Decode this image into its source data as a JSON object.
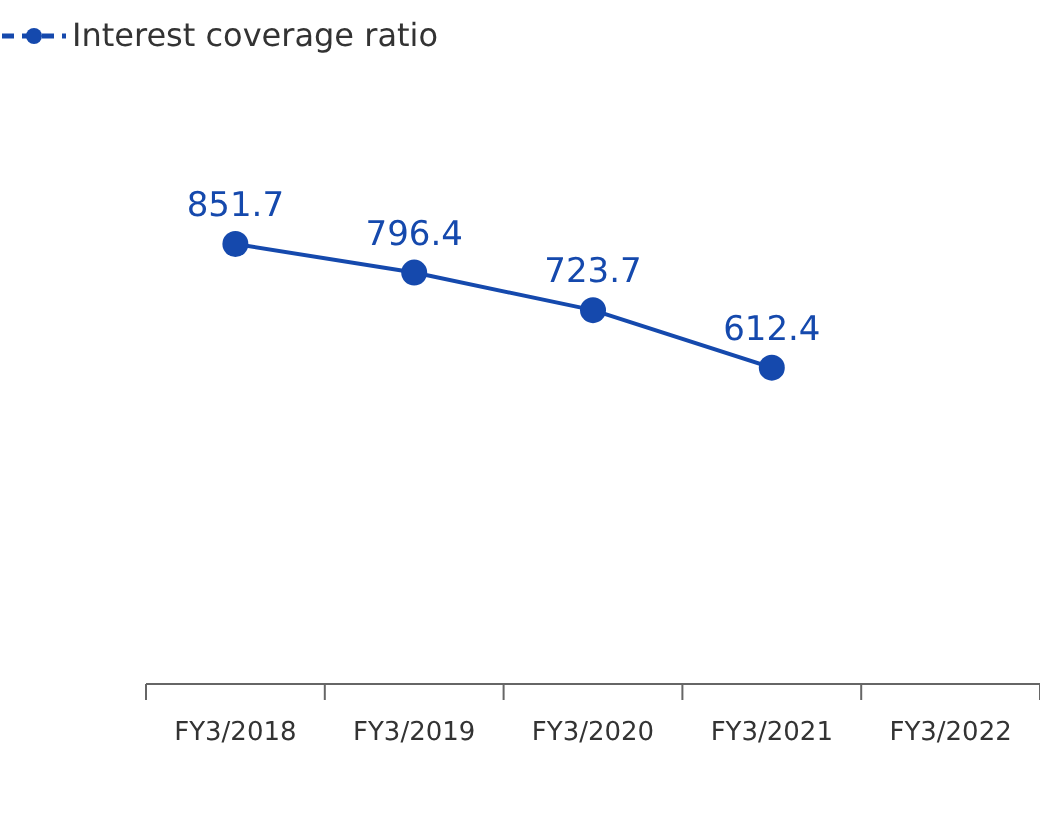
{
  "chart_data": {
    "type": "line",
    "categories": [
      "FY3/2018",
      "FY3/2019",
      "FY3/2020",
      "FY3/2021",
      "FY3/2022"
    ],
    "series": [
      {
        "name": "Interest coverage ratio",
        "color": "#1549ad",
        "values": [
          851.7,
          796.4,
          723.7,
          612.4,
          null
        ]
      }
    ],
    "data_labels": true,
    "marker": "circle",
    "line_style": "solid",
    "legend": "top left",
    "grid": false,
    "tick_labels": "x"
  }
}
